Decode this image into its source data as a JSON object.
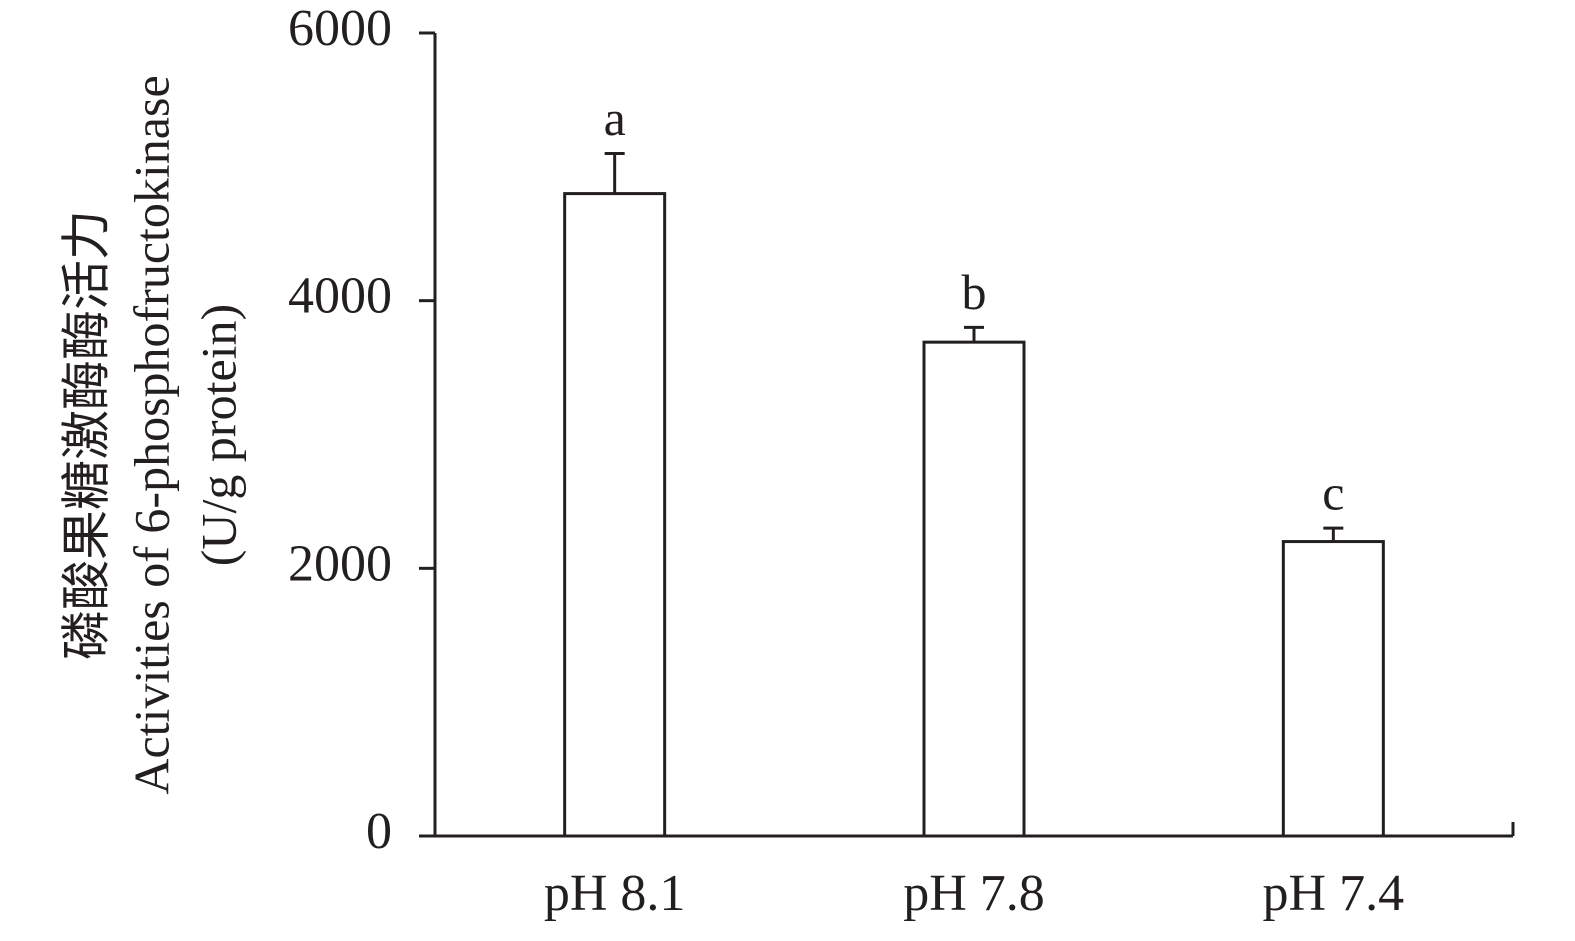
{
  "chart_data": {
    "type": "bar",
    "ylabel": [
      "磷酸果糖激酶酶活力",
      "Activities of 6-phosphofructokinase",
      "(U/g protein)"
    ],
    "categories": [
      "pH 8.1",
      "pH 7.8",
      "pH 7.4"
    ],
    "values": [
      4800,
      3690,
      2200
    ],
    "errors": [
      300,
      110,
      100
    ],
    "significance_labels": [
      "a",
      "b",
      "c"
    ],
    "color": "#ffffff",
    "ylim": [
      0,
      6000
    ],
    "yticks": [
      0,
      2000,
      4000,
      6000
    ],
    "grid": false
  }
}
